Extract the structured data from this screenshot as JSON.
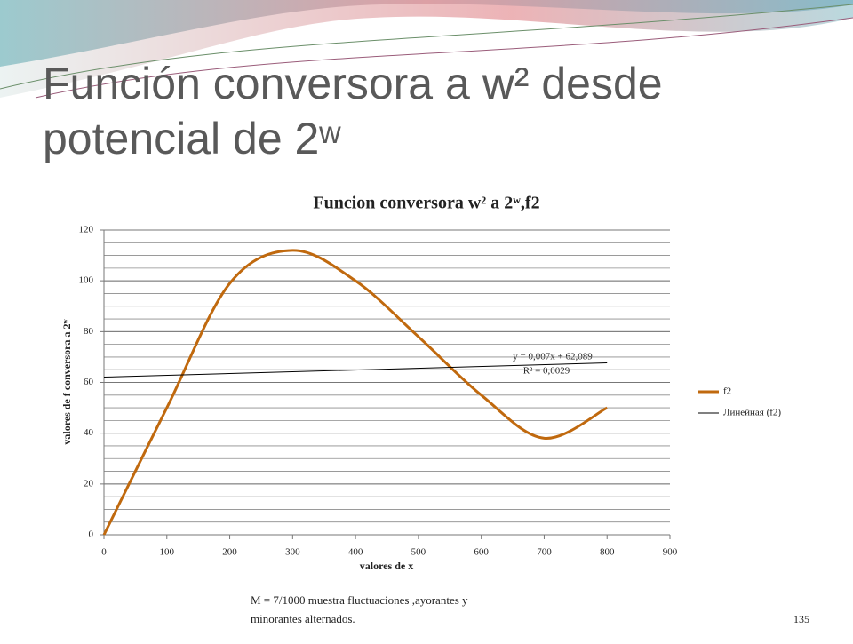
{
  "slide_title": "Función conversora a w² desde potencial de 2ʷ",
  "footer_note": "M = 7/1000 muestra fluctuaciones ,ayorantes y minorantes alternados.",
  "page_number": "135",
  "chart_data": {
    "type": "line",
    "title": "Funcion conversora  w² a 2ʷ,f2",
    "x_label": "valores de x",
    "y_label": "valores de f conversora a 2ʷ",
    "xlim": [
      0,
      900
    ],
    "xticks": [
      0,
      100,
      200,
      300,
      400,
      500,
      600,
      700,
      800,
      900
    ],
    "ylim": [
      0,
      120
    ],
    "yticks": [
      0,
      20,
      40,
      60,
      80,
      100,
      120
    ],
    "grid": true,
    "minor_grid_step": 5,
    "legend": "right",
    "series": [
      {
        "name": "f2",
        "color": "#c0690e",
        "smooth": true,
        "x": [
          0,
          100,
          200,
          300,
          400,
          500,
          600,
          700,
          800
        ],
        "values": [
          0,
          50,
          99,
          112,
          100,
          78,
          55,
          38,
          50
        ]
      },
      {
        "name": "Линейная (f2)",
        "color": "#000000",
        "smooth": false,
        "x": [
          0,
          800
        ],
        "values": [
          62.089,
          67.689
        ]
      }
    ],
    "annotations": [
      "y = 0,007x + 62,089",
      "R² = 0,0029"
    ]
  }
}
